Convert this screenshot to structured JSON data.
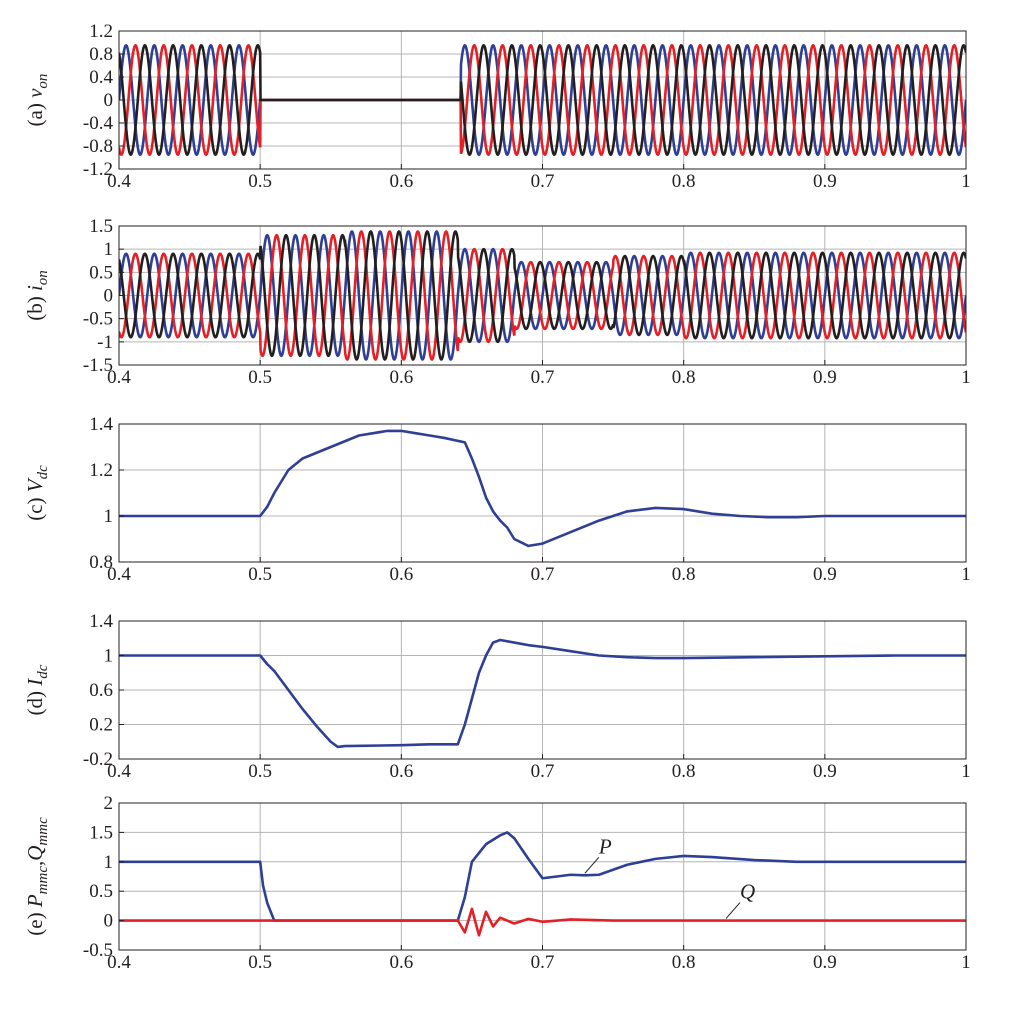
{
  "chart_data": [
    {
      "id": "a",
      "type": "line",
      "ylabel_prefix": "(a)",
      "ylabel_symbol": "v",
      "ylabel_sub": "on",
      "xlim": [
        0.4,
        1.0
      ],
      "ylim": [
        -1.2,
        1.2
      ],
      "xticks": [
        "0.4",
        "0.5",
        "0.6",
        "0.7",
        "0.8",
        "0.9",
        "1"
      ],
      "yticks": [
        "1.2",
        "0.8",
        "0.4",
        "0",
        "-0.4",
        "-0.8",
        "-1.2"
      ],
      "grid": true,
      "colors": [
        "#2e3f95",
        "#e42026",
        "#231f20"
      ],
      "description_of_waveform": "three-phase 50 Hz voltage, amplitude 0.95 from 0.4 to 0.5, zero from 0.5 to 0.642, amplitude 0.95 from 0.642 to 1.0",
      "segments": [
        {
          "t_start": 0.4,
          "t_end": 0.5,
          "amplitude": 0.95,
          "frequency_hz": 50
        },
        {
          "t_start": 0.5,
          "t_end": 0.642,
          "amplitude": 0.0,
          "frequency_hz": 50
        },
        {
          "t_start": 0.642,
          "t_end": 1.0,
          "amplitude": 0.95,
          "frequency_hz": 50
        }
      ]
    },
    {
      "id": "b",
      "type": "line",
      "ylabel_prefix": "(b)",
      "ylabel_symbol": "i",
      "ylabel_sub": "on",
      "xlim": [
        0.4,
        1.0
      ],
      "ylim": [
        -1.5,
        1.5
      ],
      "xticks": [
        "0.4",
        "0.5",
        "0.6",
        "0.7",
        "0.8",
        "0.9",
        "1"
      ],
      "yticks": [
        "1.5",
        "1",
        "0.5",
        "0",
        "-0.5",
        "-1",
        "-1.5"
      ],
      "grid": true,
      "colors": [
        "#2e3f95",
        "#e42026",
        "#231f20"
      ],
      "segments": [
        {
          "t_start": 0.4,
          "t_end": 0.5,
          "amplitude": 0.9,
          "frequency_hz": 50
        },
        {
          "t_start": 0.5,
          "t_end": 0.56,
          "amplitude": 1.3,
          "frequency_hz": 50
        },
        {
          "t_start": 0.56,
          "t_end": 0.64,
          "amplitude": 1.38,
          "frequency_hz": 50
        },
        {
          "t_start": 0.64,
          "t_end": 0.68,
          "amplitude": 1.0,
          "frequency_hz": 50
        },
        {
          "t_start": 0.68,
          "t_end": 0.75,
          "amplitude": 0.72,
          "frequency_hz": 50
        },
        {
          "t_start": 0.75,
          "t_end": 0.8,
          "amplitude": 0.85,
          "frequency_hz": 50
        },
        {
          "t_start": 0.8,
          "t_end": 1.0,
          "amplitude": 0.92,
          "frequency_hz": 50
        }
      ]
    },
    {
      "id": "c",
      "type": "line",
      "ylabel_prefix": "(c)",
      "ylabel_symbol": "V",
      "ylabel_sub": "dc",
      "xlim": [
        0.4,
        1.0
      ],
      "ylim": [
        0.8,
        1.4
      ],
      "xticks": [
        "0.4",
        "0.5",
        "0.6",
        "0.7",
        "0.8",
        "0.9",
        "1"
      ],
      "yticks": [
        "1.4",
        "1.2",
        "1",
        "0.8"
      ],
      "grid": true,
      "series": [
        {
          "color": "#2e3f95",
          "x": [
            0.4,
            0.5,
            0.505,
            0.51,
            0.52,
            0.53,
            0.55,
            0.57,
            0.59,
            0.6,
            0.61,
            0.62,
            0.63,
            0.645,
            0.65,
            0.655,
            0.66,
            0.665,
            0.67,
            0.675,
            0.68,
            0.69,
            0.7,
            0.72,
            0.74,
            0.76,
            0.78,
            0.8,
            0.82,
            0.84,
            0.86,
            0.88,
            0.9,
            0.95,
            1.0
          ],
          "y": [
            1.0,
            1.0,
            1.04,
            1.1,
            1.2,
            1.25,
            1.3,
            1.35,
            1.37,
            1.37,
            1.36,
            1.35,
            1.34,
            1.32,
            1.25,
            1.17,
            1.08,
            1.02,
            0.98,
            0.95,
            0.9,
            0.87,
            0.88,
            0.93,
            0.98,
            1.02,
            1.035,
            1.03,
            1.01,
            1.0,
            0.995,
            0.995,
            1.0,
            1.0,
            1.0
          ]
        }
      ]
    },
    {
      "id": "d",
      "type": "line",
      "ylabel_prefix": "(d)",
      "ylabel_symbol": "I",
      "ylabel_sub": "dc",
      "xlim": [
        0.4,
        1.0
      ],
      "ylim": [
        -0.2,
        1.4
      ],
      "xticks": [
        "0.4",
        "0.5",
        "0.6",
        "0.7",
        "0.8",
        "0.9",
        "1"
      ],
      "yticks": [
        "1.4",
        "1",
        "0.6",
        "0.2",
        "-0.2"
      ],
      "grid": true,
      "series": [
        {
          "color": "#2e3f95",
          "x": [
            0.4,
            0.5,
            0.505,
            0.51,
            0.52,
            0.53,
            0.54,
            0.55,
            0.555,
            0.56,
            0.6,
            0.62,
            0.64,
            0.645,
            0.65,
            0.655,
            0.66,
            0.665,
            0.67,
            0.68,
            0.69,
            0.7,
            0.72,
            0.74,
            0.76,
            0.78,
            0.8,
            0.85,
            0.9,
            0.95,
            1.0
          ],
          "y": [
            1.0,
            1.0,
            0.9,
            0.82,
            0.6,
            0.38,
            0.18,
            0.0,
            -0.06,
            -0.05,
            -0.04,
            -0.03,
            -0.03,
            0.2,
            0.5,
            0.8,
            1.0,
            1.15,
            1.18,
            1.15,
            1.12,
            1.1,
            1.05,
            1.0,
            0.98,
            0.97,
            0.97,
            0.98,
            0.99,
            1.0,
            1.0
          ]
        }
      ]
    },
    {
      "id": "e",
      "type": "line",
      "ylabel_prefix": "(e)",
      "ylabel_symbol_p": "P",
      "ylabel_sub_p": "mmc",
      "ylabel_symbol_q": "Q",
      "ylabel_sub_q": "mmc",
      "xlim": [
        0.4,
        1.0
      ],
      "ylim": [
        -0.5,
        2.0
      ],
      "xticks": [
        "0.4",
        "0.5",
        "0.6",
        "0.7",
        "0.8",
        "0.9",
        "1"
      ],
      "yticks": [
        "2",
        "1.5",
        "1",
        "0.5",
        "0",
        "-0.5"
      ],
      "grid": true,
      "series": [
        {
          "name": "P",
          "color": "#2e3f95",
          "x": [
            0.4,
            0.5,
            0.502,
            0.505,
            0.51,
            0.52,
            0.64,
            0.645,
            0.65,
            0.66,
            0.67,
            0.675,
            0.68,
            0.69,
            0.7,
            0.71,
            0.72,
            0.73,
            0.74,
            0.76,
            0.78,
            0.8,
            0.82,
            0.85,
            0.88,
            0.9,
            0.95,
            1.0
          ],
          "y": [
            1.0,
            1.0,
            0.6,
            0.3,
            0.0,
            0.0,
            0.0,
            0.4,
            1.0,
            1.3,
            1.45,
            1.5,
            1.4,
            1.05,
            0.72,
            0.75,
            0.78,
            0.77,
            0.78,
            0.95,
            1.05,
            1.1,
            1.08,
            1.03,
            1.0,
            1.0,
            1.0,
            1.0
          ]
        },
        {
          "name": "Q",
          "color": "#e42026",
          "x": [
            0.4,
            0.64,
            0.645,
            0.65,
            0.655,
            0.66,
            0.665,
            0.67,
            0.68,
            0.69,
            0.7,
            0.72,
            0.75,
            0.8,
            0.9,
            1.0
          ],
          "y": [
            0.0,
            0.0,
            -0.2,
            0.2,
            -0.25,
            0.15,
            -0.1,
            0.05,
            -0.05,
            0.03,
            -0.02,
            0.02,
            0.0,
            0.0,
            0.0,
            0.0
          ]
        }
      ],
      "annotations": [
        {
          "text": "P",
          "series": "P",
          "x": 0.73
        },
        {
          "text": "Q",
          "series": "Q",
          "x": 0.83
        }
      ]
    }
  ]
}
